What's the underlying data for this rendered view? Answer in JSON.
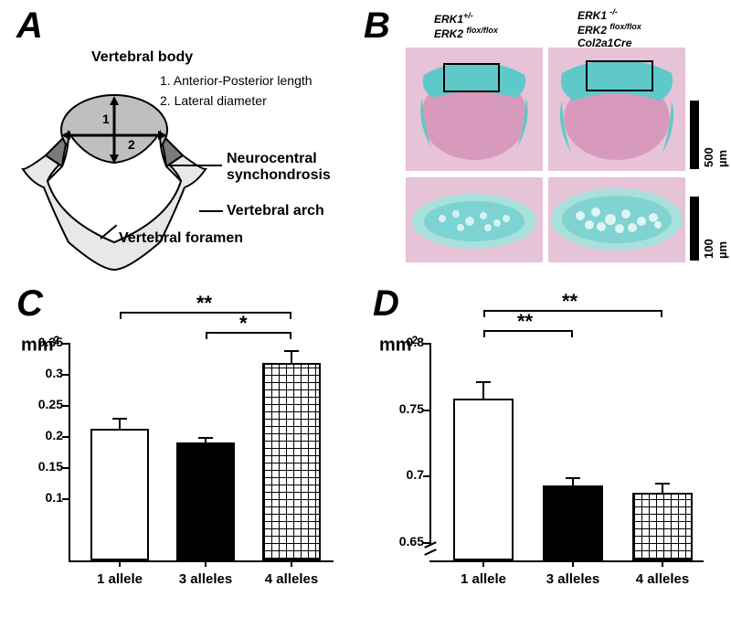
{
  "panelA": {
    "label": "A",
    "diagram": {
      "title": "Vertebral body",
      "line1": "1. Anterior-Posterior length",
      "line2": "2. Lateral diameter",
      "num1": "1",
      "num2": "2",
      "lbl_sync": "Neurocentral\nsynchondrosis",
      "lbl_arch": "Vertebral arch",
      "lbl_foramen": "Vertebral foramen",
      "body_fill": "#bfbfbf",
      "sync_fill": "#7a7a7a",
      "arch_fill": "#e8e8e8",
      "stroke": "#000000"
    }
  },
  "panelB": {
    "label": "B",
    "geno_left_l1": "ERK1",
    "geno_left_sup1": "+/-",
    "geno_left_l2": "ERK2",
    "geno_left_sup2": "flox/flox",
    "geno_right_l1": "ERK1",
    "geno_right_sup1": "-/-",
    "geno_right_l2": "ERK2",
    "geno_right_sup2": "flox/flox",
    "geno_right_l3": "Col2a1Cre",
    "scale_top": "500 µm",
    "scale_bot": "100 µm",
    "tissue_pink": "#e6c3d6",
    "tissue_dark_pink": "#d89abc",
    "cartilage_blue": "#5fc9c9",
    "cartilage_light": "#a8e0dc",
    "box_stroke": "#000000"
  },
  "panelC": {
    "label": "C",
    "ylabel": "mm",
    "ylabel_sup": "2",
    "categories": [
      "1 allele",
      "3 alleles",
      "4 alleles"
    ],
    "values": [
      0.212,
      0.19,
      0.318
    ],
    "errors": [
      0.018,
      0.008,
      0.02
    ],
    "bar_fills": [
      "#ffffff",
      "#000000",
      "crosshatch"
    ],
    "ylim": [
      0,
      0.35
    ],
    "yticks": [
      0.1,
      0.15,
      0.2,
      0.25,
      0.3,
      0.35
    ],
    "sig": [
      {
        "from": 0,
        "to": 2,
        "label": "**",
        "y": 0.37
      },
      {
        "from": 1,
        "to": 2,
        "label": "*",
        "y": 0.348
      }
    ],
    "chart_bg": "#ffffff",
    "axis_color": "#000000"
  },
  "panelD": {
    "label": "D",
    "ylabel": "mm",
    "ylabel_sup": "2",
    "categories": [
      "1 allele",
      "3 alleles",
      "4 alleles"
    ],
    "values": [
      0.758,
      0.693,
      0.687
    ],
    "errors": [
      0.013,
      0.006,
      0.008
    ],
    "bar_fills": [
      "#ffffff",
      "#000000",
      "crosshatch"
    ],
    "ylim_broken": {
      "break_at": 0.65,
      "top": 0.8
    },
    "yticks": [
      0.65,
      0.7,
      0.75,
      0.8
    ],
    "sig": [
      {
        "from": 0,
        "to": 2,
        "label": "**",
        "y": 0.81
      },
      {
        "from": 0,
        "to": 1,
        "label": "**",
        "y": 0.788
      }
    ],
    "chart_bg": "#ffffff",
    "axis_color": "#000000"
  }
}
